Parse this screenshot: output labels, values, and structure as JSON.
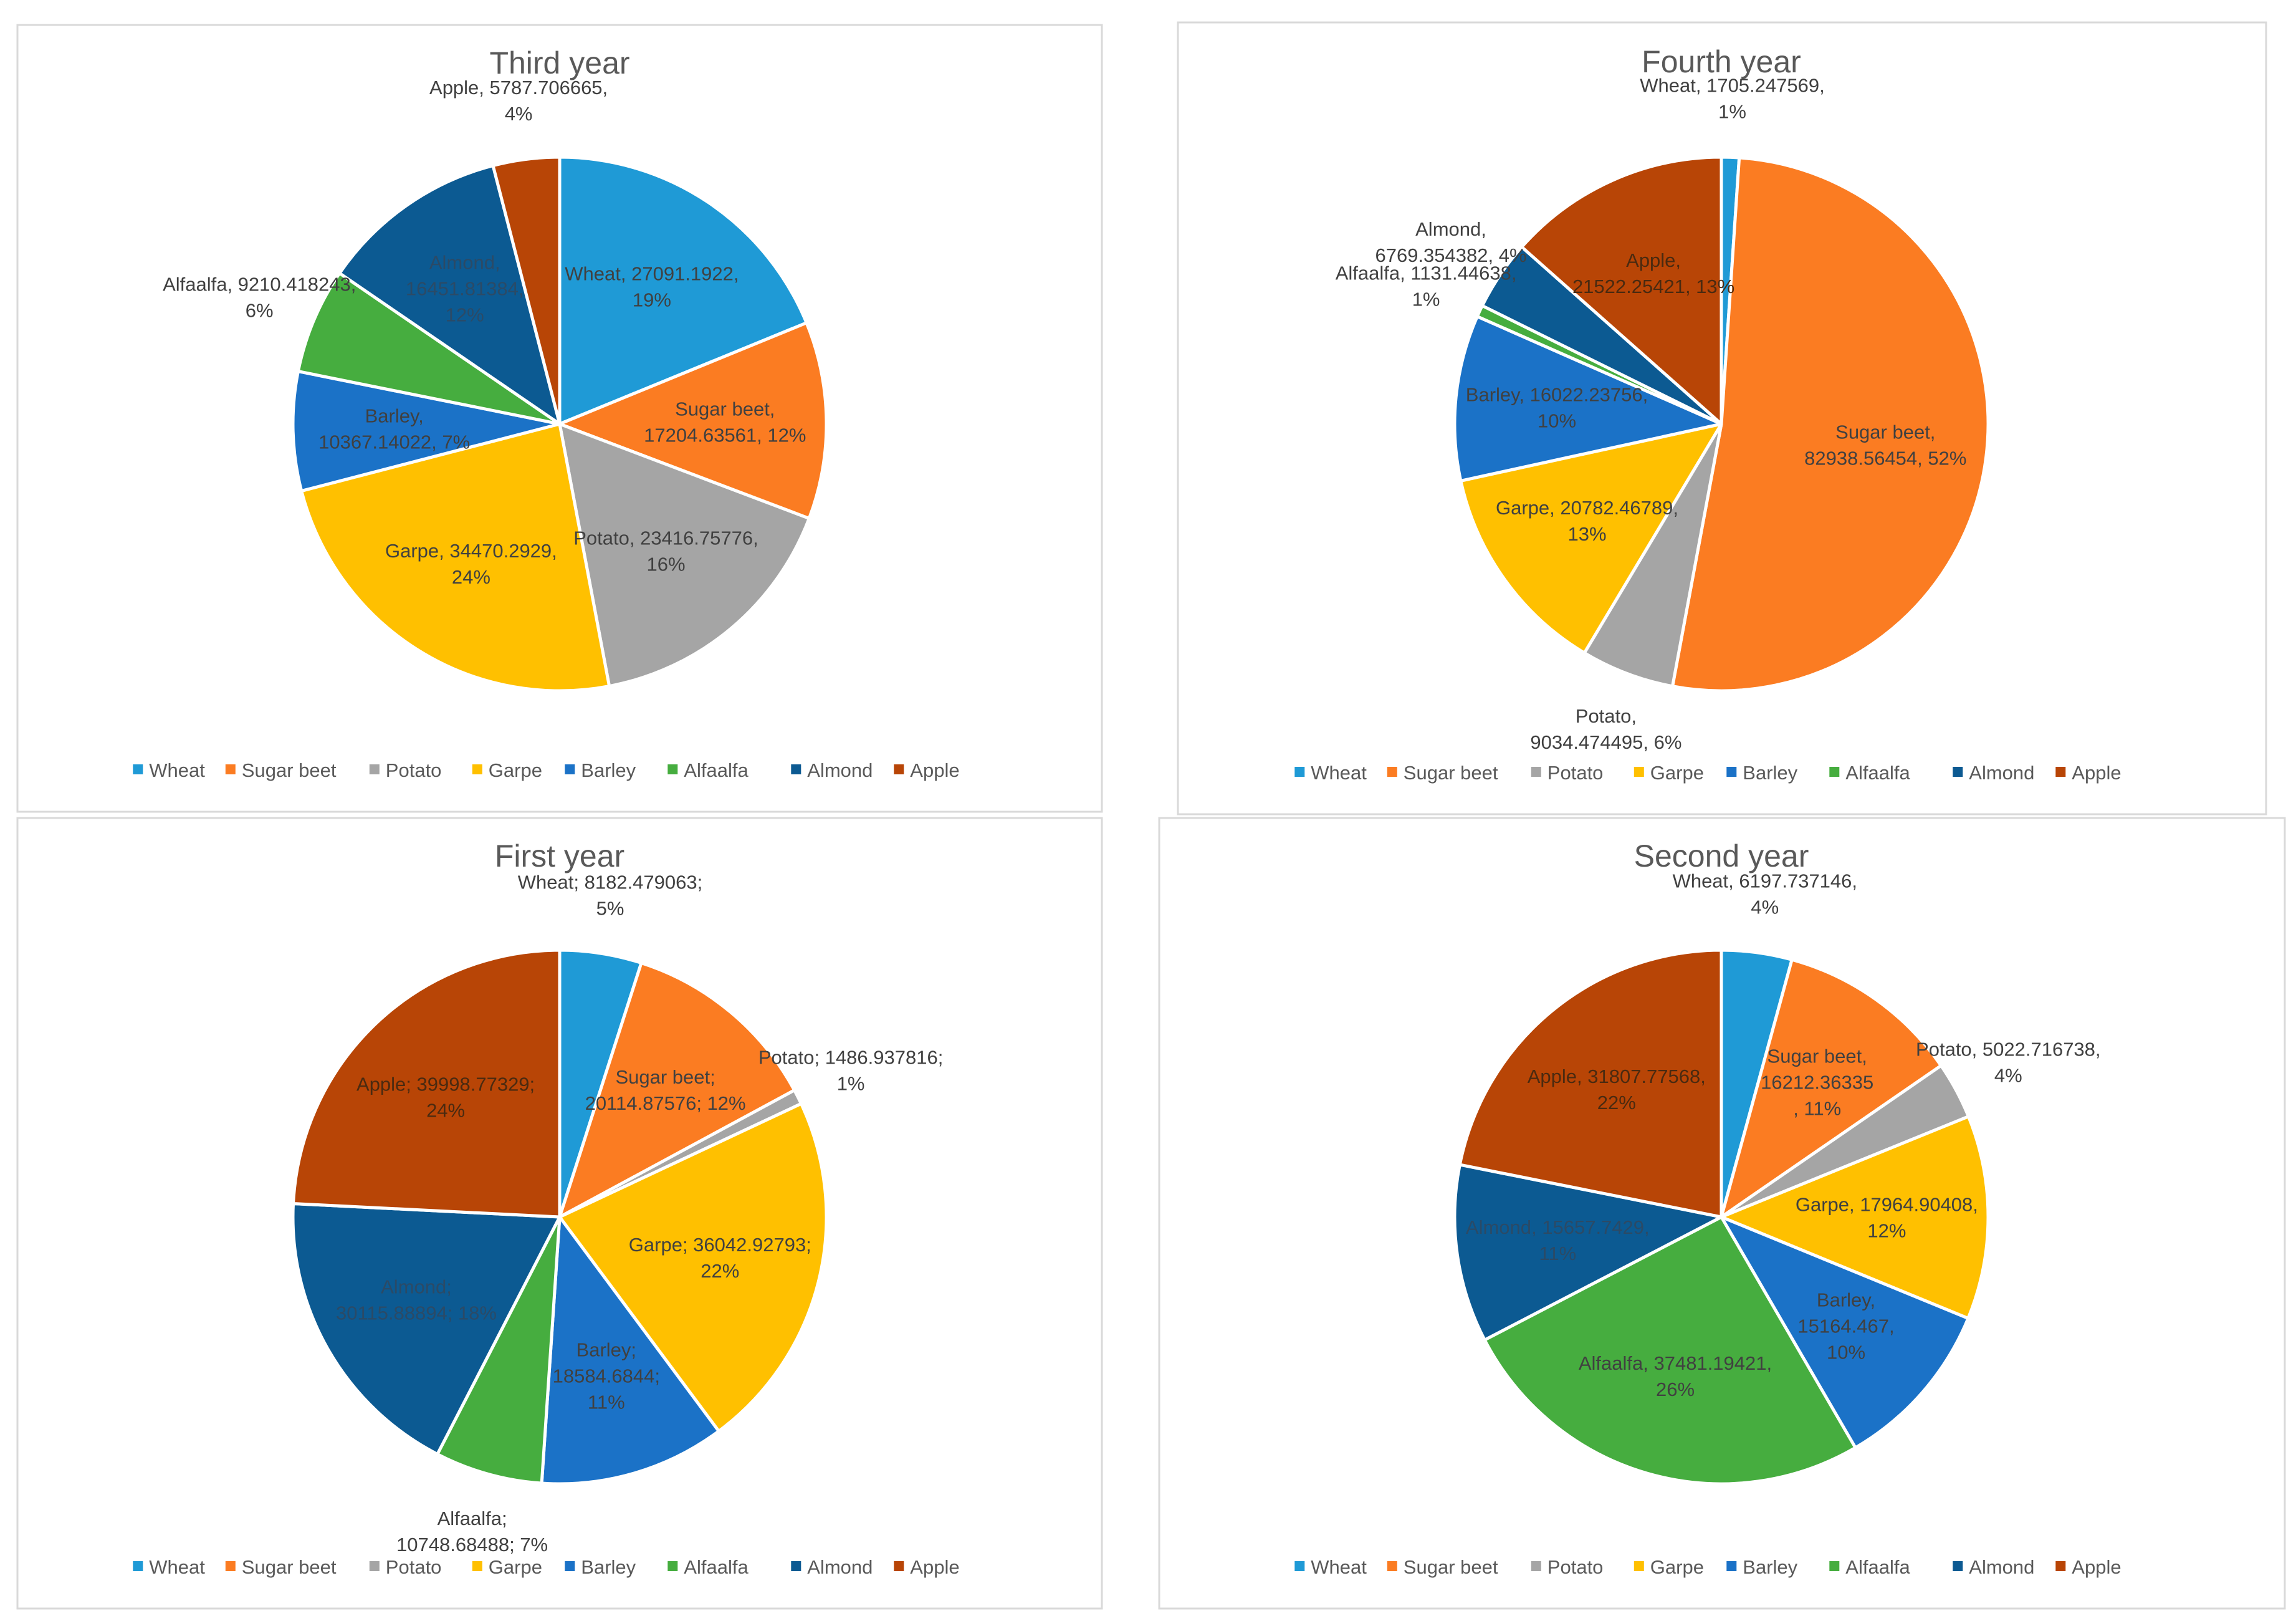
{
  "colors": {
    "Wheat": "#1f9ad6",
    "Sugar beet": "#fb7c22",
    "Potato": "#a5a5a5",
    "Garpe": "#ffc000",
    "Barley": "#1b72c7",
    "Alfaalfa": "#46ad3f",
    "Almond": "#0c5a92",
    "Apple": "#b84506"
  },
  "chart_data": [
    {
      "type": "pie",
      "title": "Third year",
      "legend": [
        "Wheat",
        "Sugar beet",
        "Potato",
        "Garpe",
        "Barley",
        "Alfaalfa",
        "Almond",
        "Apple"
      ],
      "categories": [
        "Wheat",
        "Sugar beet",
        "Potato",
        "Garpe",
        "Barley",
        "Alfaalfa",
        "Almond",
        "Apple"
      ],
      "values": [
        27091.1922,
        17204.63561,
        23416.75776,
        34470.2929,
        10367.14022,
        9210.418243,
        16451.81384,
        5787.706665
      ],
      "percents": [
        "19%",
        "12%",
        "16%",
        "24%",
        "7%",
        "6%",
        "12%",
        "4%"
      ],
      "label_lines": [
        [
          "Wheat, 27091.1922,",
          "19%"
        ],
        [
          "Sugar beet,",
          "17204.63561, 12%"
        ],
        [
          "Potato, 23416.75776,",
          "16%"
        ],
        [
          "Garpe, 34470.2929,",
          "24%"
        ],
        [
          "Barley,",
          "10367.14022, 7%"
        ],
        [
          "Alfaalfa, 9210.418243,",
          "6%"
        ],
        [
          "Almond,",
          "16451.81384,",
          "12%"
        ],
        [
          "Apple, 5787.706665,",
          "4%"
        ]
      ],
      "label_placement": [
        "inside",
        "inside",
        "inside",
        "inside",
        "inside",
        "outside",
        "inside",
        "outside"
      ]
    },
    {
      "type": "pie",
      "title": "Fourth year",
      "legend": [
        "Wheat",
        "Sugar beet",
        "Potato",
        "Garpe",
        "Barley",
        "Alfaalfa",
        "Almond",
        "Apple"
      ],
      "categories": [
        "Wheat",
        "Sugar beet",
        "Potato",
        "Garpe",
        "Barley",
        "Alfaalfa",
        "Almond",
        "Apple"
      ],
      "values": [
        1705.247569,
        82938.56454,
        9034.474495,
        20782.46789,
        16022.23756,
        1131.44638,
        6769.354382,
        21522.25421
      ],
      "percents": [
        "1%",
        "52%",
        "6%",
        "13%",
        "10%",
        "1%",
        "4%",
        "13%"
      ],
      "label_lines": [
        [
          "Wheat, 1705.247569,",
          "1%"
        ],
        [
          "Sugar beet,",
          "82938.56454, 52%"
        ],
        [
          "Potato,",
          "9034.474495, 6%"
        ],
        [
          "Garpe, 20782.46789,",
          "13%"
        ],
        [
          "Barley, 16022.23756,",
          "10%"
        ],
        [
          "Alfaalfa, 1131.44638,",
          "1%"
        ],
        [
          "Almond,",
          "6769.354382, 4%"
        ],
        [
          "Apple,",
          "21522.25421, 13%"
        ]
      ],
      "label_placement": [
        "outside",
        "inside",
        "outside",
        "inside",
        "inside",
        "outside",
        "outside",
        "inside"
      ]
    },
    {
      "type": "pie",
      "title": "First year",
      "legend": [
        "Wheat",
        "Sugar beet",
        "Potato",
        "Garpe",
        "Barley",
        "Alfaalfa",
        "Almond",
        "Apple"
      ],
      "categories": [
        "Wheat",
        "Sugar beet",
        "Potato",
        "Garpe",
        "Barley",
        "Alfaalfa",
        "Almond",
        "Apple"
      ],
      "values": [
        8182.479063,
        20114.87576,
        1486.937816,
        36042.92793,
        18584.6844,
        10748.68488,
        30115.88894,
        39998.77329
      ],
      "percents": [
        "5%",
        "12%",
        "1%",
        "22%",
        "11%",
        "7%",
        "18%",
        "24%"
      ],
      "label_lines": [
        [
          "Wheat; 8182.479063;",
          "5%"
        ],
        [
          "Sugar beet;",
          "20114.87576; 12%"
        ],
        [
          "Potato; 1486.937816;",
          "1%"
        ],
        [
          "Garpe; 36042.92793;",
          "22%"
        ],
        [
          "Barley;",
          "18584.6844;",
          "11%"
        ],
        [
          "Alfaalfa;",
          "10748.68488; 7%"
        ],
        [
          "Almond;",
          "30115.88894; 18%"
        ],
        [
          "Apple; 39998.77329;",
          "24%"
        ]
      ],
      "label_placement": [
        "outside",
        "inside",
        "outside",
        "inside",
        "inside",
        "outside",
        "inside",
        "inside"
      ]
    },
    {
      "type": "pie",
      "title": "Second year",
      "legend": [
        "Wheat",
        "Sugar beet",
        "Potato",
        "Garpe",
        "Barley",
        "Alfaalfa",
        "Almond",
        "Apple"
      ],
      "categories": [
        "Wheat",
        "Sugar beet",
        "Potato",
        "Garpe",
        "Barley",
        "Alfaalfa",
        "Almond",
        "Apple"
      ],
      "values": [
        6197.737146,
        16212.36335,
        5022.716738,
        17964.90408,
        15164.467,
        37481.19421,
        15657.7429,
        31807.77568
      ],
      "percents": [
        "4%",
        "11%",
        "4%",
        "12%",
        "10%",
        "26%",
        "11%",
        "22%"
      ],
      "label_lines": [
        [
          "Wheat, 6197.737146,",
          "4%"
        ],
        [
          "Sugar beet,",
          "16212.36335",
          ", 11%"
        ],
        [
          "Potato, 5022.716738,",
          "4%"
        ],
        [
          "Garpe, 17964.90408,",
          "12%"
        ],
        [
          "Barley,",
          "15164.467,",
          "10%"
        ],
        [
          "Alfaalfa, 37481.19421,",
          "26%"
        ],
        [
          "Almond, 15657.7429,",
          "11%"
        ],
        [
          "Apple, 31807.77568,",
          "22%"
        ]
      ],
      "label_placement": [
        "outside",
        "inside",
        "outside",
        "inside",
        "inside",
        "inside",
        "inside",
        "inside"
      ]
    }
  ]
}
